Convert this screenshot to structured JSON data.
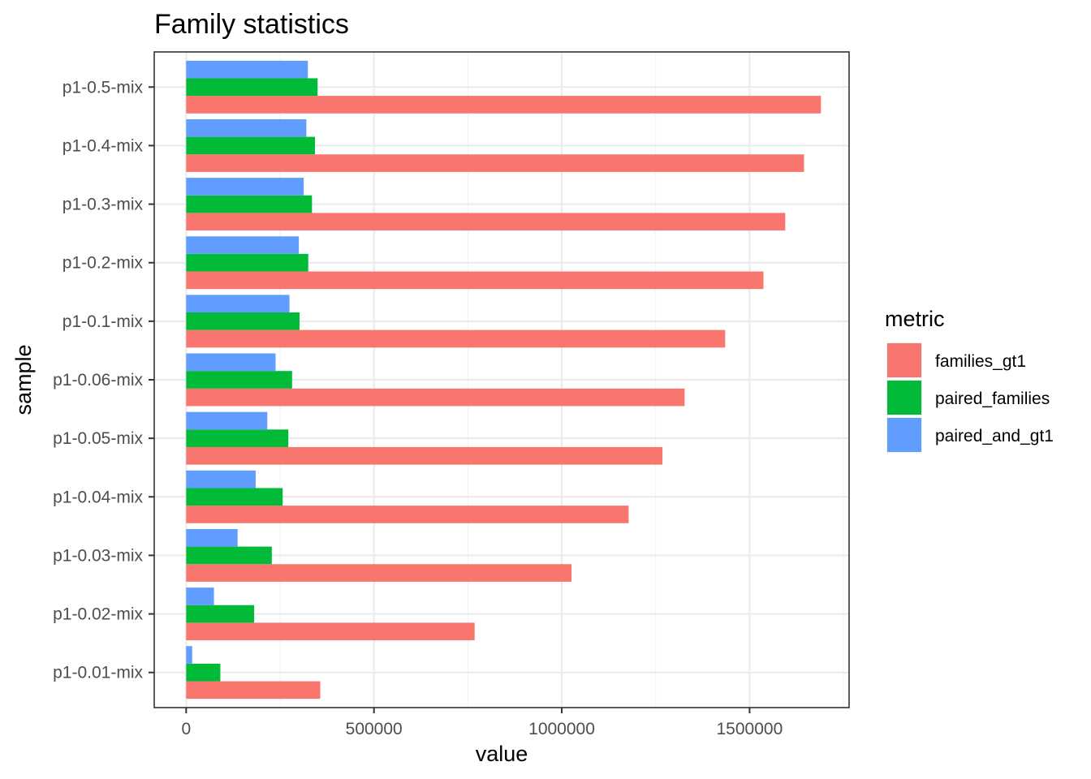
{
  "chart_data": {
    "type": "bar",
    "orientation": "horizontal",
    "title": "Family statistics",
    "xlabel": "value",
    "ylabel": "sample",
    "xlim": [
      -85000,
      1765000
    ],
    "xticks": [
      0,
      500000,
      1000000,
      1500000
    ],
    "xtick_labels": [
      "0",
      "500000",
      "1000000",
      "1500000"
    ],
    "categories": [
      "p1-0.5-mix",
      "p1-0.4-mix",
      "p1-0.3-mix",
      "p1-0.2-mix",
      "p1-0.1-mix",
      "p1-0.06-mix",
      "p1-0.05-mix",
      "p1-0.04-mix",
      "p1-0.03-mix",
      "p1-0.02-mix",
      "p1-0.01-mix"
    ],
    "series": [
      {
        "name": "families_gt1",
        "color": "#F8766D",
        "values": [
          1690000,
          1645000,
          1595000,
          1537000,
          1435000,
          1327000,
          1268000,
          1178000,
          1026000,
          768000,
          357000
        ]
      },
      {
        "name": "paired_families",
        "color": "#00BA38",
        "values": [
          350000,
          343000,
          335000,
          325000,
          302000,
          282000,
          272000,
          257000,
          228000,
          181000,
          91000
        ]
      },
      {
        "name": "paired_and_gt1",
        "color": "#619CFF",
        "values": [
          324000,
          320000,
          313000,
          300000,
          275000,
          238000,
          216000,
          185000,
          137000,
          74000,
          16000
        ]
      }
    ],
    "grid": true,
    "legend": {
      "title": "metric",
      "position": "right"
    }
  }
}
